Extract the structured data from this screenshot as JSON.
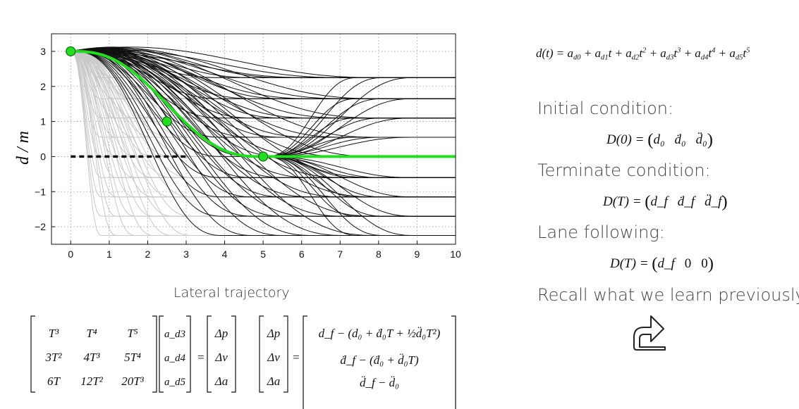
{
  "chart_data": {
    "type": "line",
    "ylabel": "d / m",
    "xlim": [
      -0.5,
      10
    ],
    "ylim": [
      -2.5,
      3.5
    ],
    "xticks": [
      "0",
      "1",
      "2",
      "3",
      "4",
      "5",
      "6",
      "7",
      "8",
      "9",
      "10"
    ],
    "yticks": [
      "−2",
      "−1",
      "0",
      "1",
      "2",
      "3"
    ],
    "grid": "dotted",
    "start_point": [
      0,
      3
    ],
    "highlight_points": [
      [
        2.5,
        1
      ],
      [
        5,
        0
      ]
    ],
    "final_offsets": [
      -2.25,
      -1.7,
      -1.15,
      -0.6,
      0.55,
      1.1,
      1.65,
      2.25
    ],
    "highlight_color": "#22dd22",
    "trajectory_color": "#111111",
    "faded_color": "#c8c8c8"
  },
  "caption": "Lateral trajectory",
  "polynomial": {
    "lhs": "d(t) = ",
    "rhs": "a_{d0} + a_{d1} t + a_{d2} t^2 + a_{d3} t^3 + a_{d4} t^4 + a_{d5} t^5"
  },
  "initial_label": "Initial condition:",
  "initial_eq": {
    "lhs": "D(0) = ",
    "items": [
      "d₀",
      "ḋ₀",
      "d̈₀"
    ]
  },
  "terminate_label": "Terminate condition:",
  "terminate_eq": {
    "lhs": "D(T) = ",
    "items": [
      "d_f",
      "ḋ_f",
      "d̈_f"
    ]
  },
  "lane_label": "Lane following:",
  "lane_eq": {
    "lhs": "D(T) = ",
    "items": [
      "d_f",
      "0",
      "0"
    ]
  },
  "recall_label": "Recall what we learn previously:",
  "matrix_system": {
    "coeff_matrix": [
      [
        "T³",
        "T⁴",
        "T⁵"
      ],
      [
        "3T²",
        "4T³",
        "5T⁴"
      ],
      [
        "6T",
        "12T²",
        "20T³"
      ]
    ],
    "unknowns": [
      "a_d3",
      "a_d4",
      "a_d5"
    ],
    "rhs": [
      "Δp",
      "Δv",
      "Δa"
    ],
    "definitions": [
      "d_f − (d₀ + ḋ₀T + ½d̈₀T²)",
      "ḋ_f − (ḋ₀ + d̈₀T)",
      "d̈_f − d̈₀"
    ]
  }
}
